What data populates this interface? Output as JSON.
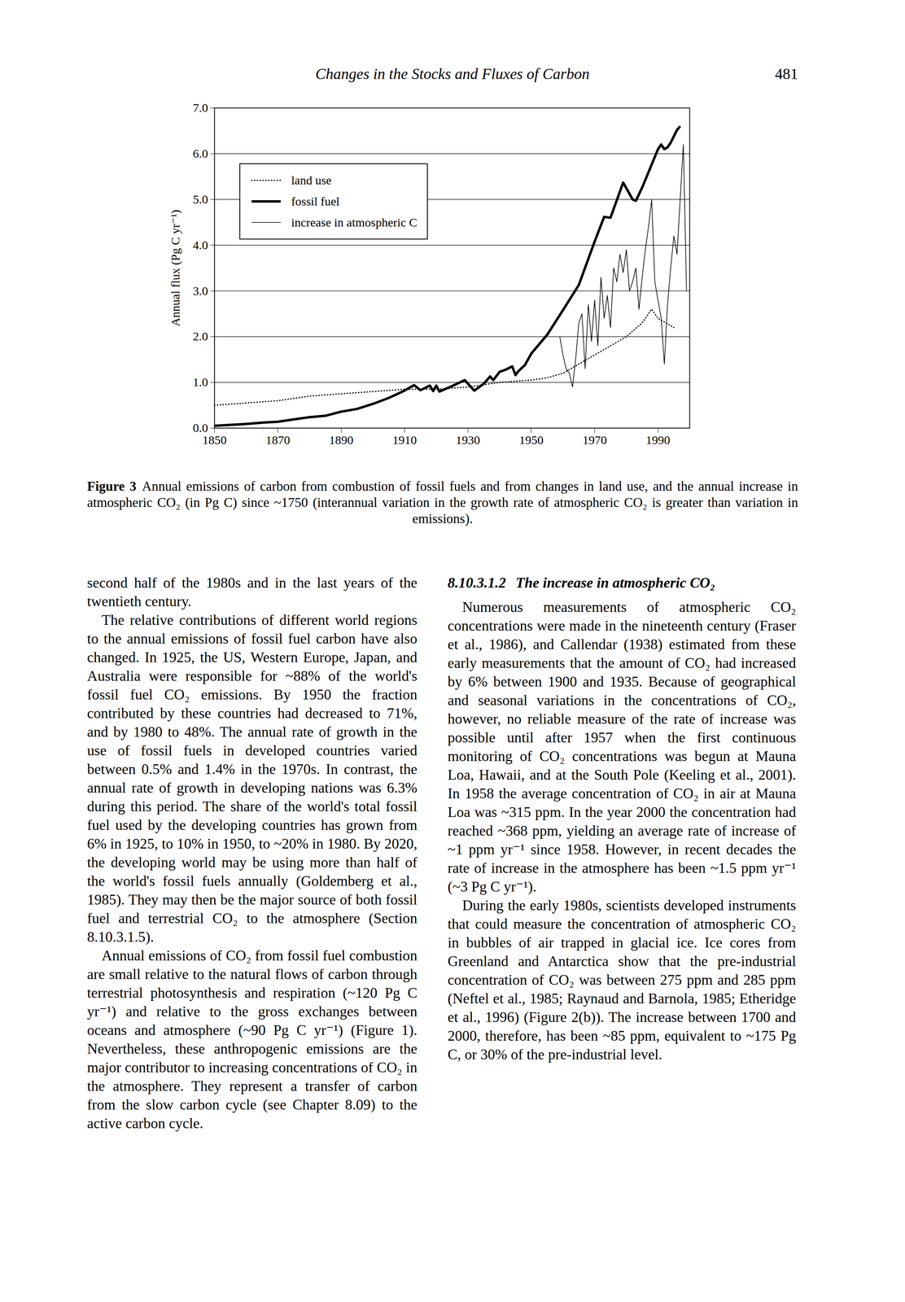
{
  "header": {
    "title": "Changes in the Stocks and Fluxes of Carbon",
    "page": 481
  },
  "chart_data": {
    "type": "line",
    "y_label": "Annual flux (Pg C yr⁻¹)",
    "xlim": [
      1850,
      2000
    ],
    "xticks": [
      1850,
      1870,
      1890,
      1910,
      1930,
      1950,
      1970,
      1990
    ],
    "ylim": [
      0,
      7
    ],
    "yticks": [
      {
        "value": 0,
        "label": "0.0"
      },
      {
        "value": 1,
        "label": "1.0"
      },
      {
        "value": 2,
        "label": "2.0"
      },
      {
        "value": 3,
        "label": "3.0"
      },
      {
        "value": 4,
        "label": "4.0"
      },
      {
        "value": 5,
        "label": "5.0"
      },
      {
        "value": 6,
        "label": "6.0"
      },
      {
        "value": 7,
        "label": "7.0"
      }
    ],
    "grid": true,
    "legend": "top-left",
    "series": [
      {
        "name": "land use",
        "color": "#000000",
        "line_style": "dotted",
        "x": [
          1850,
          1860,
          1870,
          1880,
          1890,
          1900,
          1910,
          1920,
          1930,
          1940,
          1950,
          1955,
          1960,
          1965,
          1970,
          1975,
          1980,
          1985,
          1988,
          1990,
          1995
        ],
        "values": [
          0.5,
          0.55,
          0.6,
          0.7,
          0.75,
          0.8,
          0.85,
          0.85,
          0.9,
          1.0,
          1.05,
          1.1,
          1.2,
          1.4,
          1.6,
          1.8,
          2.0,
          2.3,
          2.6,
          2.4,
          2.2
        ]
      },
      {
        "name": "fossil fuel",
        "color": "#000000",
        "line_style": "thick",
        "x": [
          1850,
          1855,
          1860,
          1865,
          1870,
          1875,
          1880,
          1885,
          1890,
          1895,
          1900,
          1905,
          1910,
          1913,
          1915,
          1918,
          1919,
          1920,
          1921,
          1925,
          1929,
          1932,
          1935,
          1937,
          1938,
          1940,
          1942,
          1944,
          1945,
          1946,
          1948,
          1950,
          1955,
          1960,
          1965,
          1970,
          1973,
          1975,
          1979,
          1982,
          1983,
          1985,
          1990,
          1991,
          1992,
          1993,
          1994,
          1996,
          1997
        ],
        "values": [
          0.05,
          0.07,
          0.09,
          0.12,
          0.14,
          0.19,
          0.24,
          0.27,
          0.36,
          0.42,
          0.53,
          0.66,
          0.82,
          0.94,
          0.83,
          0.93,
          0.81,
          0.93,
          0.8,
          0.92,
          1.05,
          0.82,
          0.97,
          1.13,
          1.05,
          1.23,
          1.28,
          1.35,
          1.16,
          1.25,
          1.38,
          1.63,
          2.04,
          2.58,
          3.13,
          4.08,
          4.62,
          4.6,
          5.37,
          5.0,
          4.97,
          5.26,
          6.1,
          6.2,
          6.1,
          6.14,
          6.24,
          6.52,
          6.6
        ]
      },
      {
        "name": "increase in atmospheric C",
        "color": "#000000",
        "line_style": "solid",
        "x": [
          1959,
          1960,
          1961,
          1962,
          1963,
          1964,
          1965,
          1966,
          1967,
          1968,
          1969,
          1970,
          1971,
          1972,
          1973,
          1974,
          1975,
          1976,
          1977,
          1978,
          1979,
          1980,
          1981,
          1982,
          1983,
          1984,
          1985,
          1986,
          1987,
          1988,
          1989,
          1990,
          1991,
          1992,
          1993,
          1994,
          1995,
          1996,
          1997,
          1998,
          1999
        ],
        "values": [
          2.0,
          1.6,
          1.3,
          1.2,
          0.9,
          1.5,
          2.3,
          2.5,
          1.3,
          2.7,
          1.9,
          2.8,
          1.8,
          3.3,
          2.4,
          2.9,
          2.2,
          3.5,
          3.2,
          3.8,
          3.4,
          3.9,
          3.0,
          3.2,
          3.5,
          2.6,
          3.3,
          3.9,
          4.4,
          5.0,
          3.2,
          2.8,
          2.4,
          1.4,
          2.7,
          3.5,
          4.2,
          3.8,
          5.0,
          6.2,
          3.0
        ]
      }
    ]
  },
  "caption": {
    "label": "Figure 3",
    "text": "Annual emissions of carbon from combustion of fossil fuels and from changes in land use, and the annual increase in atmospheric CO₂ (in Pg C) since ~1750 (interannual variation in the growth rate of atmospheric CO₂ is greater than variation in emissions)."
  },
  "left_column": {
    "paragraphs": [
      "second half of the 1980s and in the last years of the twentieth century.",
      "The relative contributions of different world regions to the annual emissions of fossil fuel carbon have also changed. In 1925, the US, Western Europe, Japan, and Australia were responsible for ~88% of the world's fossil fuel CO₂ emissions. By 1950 the fraction contributed by these countries had decreased to 71%, and by 1980 to 48%. The annual rate of growth in the use of fossil fuels in developed countries varied between 0.5% and 1.4% in the 1970s. In contrast, the annual rate of growth in developing nations was 6.3% during this period. The share of the world's total fossil fuel used by the developing countries has grown from 6% in 1925, to 10% in 1950, to ~20% in 1980. By 2020, the developing world may be using more than half of the world's fossil fuels annually (Goldemberg et al., 1985). They may then be the major source of both fossil fuel and terrestrial CO₂ to the atmosphere (Section 8.10.3.1.5).",
      "Annual emissions of CO₂ from fossil fuel combustion are small relative to the natural flows of carbon through terrestrial photosynthesis and respiration (~120 Pg C yr⁻¹) and relative to the gross exchanges between oceans and atmosphere (~90 Pg C yr⁻¹) (Figure 1). Nevertheless, these anthropogenic emissions are the major contributor to increasing concentrations of CO₂ in the atmosphere. They represent a transfer of carbon from the slow carbon cycle (see Chapter 8.09) to the active carbon cycle."
    ]
  },
  "right_column": {
    "heading": {
      "number": "8.10.3.1.2",
      "title": "The increase in atmospheric CO₂"
    },
    "paragraphs": [
      "Numerous measurements of atmospheric CO₂ concentrations were made in the nineteenth century (Fraser et al., 1986), and Callendar (1938) estimated from these early measurements that the amount of CO₂ had increased by 6% between 1900 and 1935. Because of geographical and seasonal variations in the concentrations of CO₂, however, no reliable measure of the rate of increase was possible until after 1957 when the first continuous monitoring of CO₂ concentrations was begun at Mauna Loa, Hawaii, and at the South Pole (Keeling et al., 2001). In 1958 the average concentration of CO₂ in air at Mauna Loa was ~315 ppm. In the year 2000 the concentration had reached ~368 ppm, yielding an average rate of increase of ~1 ppm yr⁻¹ since 1958. However, in recent decades the rate of increase in the atmosphere has been ~1.5 ppm yr⁻¹ (~3 Pg C yr⁻¹).",
      "During the early 1980s, scientists developed instruments that could measure the concentration of atmospheric CO₂ in bubbles of air trapped in glacial ice. Ice cores from Greenland and Antarctica show that the pre-industrial concentration of CO₂ was between 275 ppm and 285 ppm (Neftel et al., 1985; Raynaud and Barnola, 1985; Etheridge et al., 1996) (Figure 2(b)). The increase between 1700 and 2000, therefore, has been ~85 ppm, equivalent to ~175 Pg C, or 30% of the pre-industrial level."
    ]
  }
}
